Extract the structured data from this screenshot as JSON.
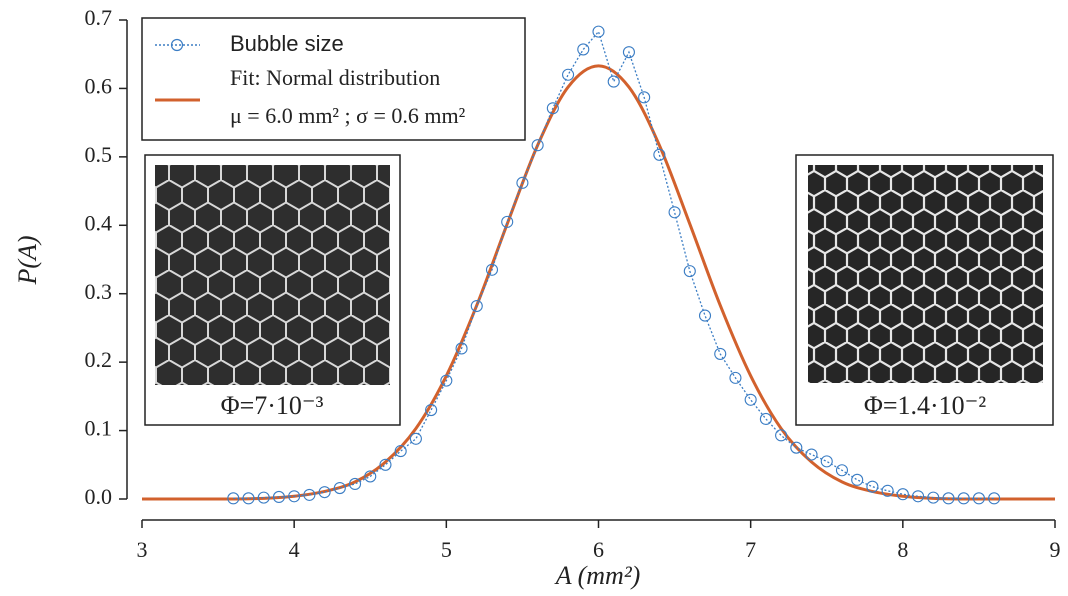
{
  "chart_data": {
    "type": "line",
    "xlabel": "A (mm²)",
    "ylabel": "P(A)",
    "xlim": [
      3,
      9
    ],
    "ylim": [
      0,
      0.7
    ],
    "xticks": [
      3,
      4,
      5,
      6,
      7,
      8,
      9
    ],
    "yticks": [
      {
        "value": 0,
        "label": "0.0"
      },
      0.1,
      0.2,
      0.3,
      0.4,
      0.5,
      0.6,
      0.7
    ],
    "legend": {
      "location": "upper left",
      "subtitle": "μ = 6.0 mm² ; σ = 0.6 mm²"
    },
    "annotations": [
      "Φ=7·10⁻³",
      "Φ=1.4·10⁻²"
    ],
    "series": [
      {
        "name": "Bubble size",
        "color": "#3b7dc4",
        "marker": "o",
        "linestyle": "dotted",
        "x": [
          3.6,
          3.7,
          3.8,
          3.9,
          4.0,
          4.1,
          4.2,
          4.3,
          4.4,
          4.5,
          4.6,
          4.7,
          4.8,
          4.9,
          5.0,
          5.1,
          5.2,
          5.3,
          5.4,
          5.5,
          5.6,
          5.7,
          5.8,
          5.9,
          6.0,
          6.1,
          6.2,
          6.3,
          6.4,
          6.5,
          6.6,
          6.7,
          6.8,
          6.9,
          7.0,
          7.1,
          7.2,
          7.3,
          7.4,
          7.5,
          7.6,
          7.7,
          7.8,
          7.9,
          8.0,
          8.1,
          8.2,
          8.3,
          8.4,
          8.5,
          8.6
        ],
        "values": [
          0.001,
          0.001,
          0.002,
          0.003,
          0.004,
          0.006,
          0.01,
          0.016,
          0.022,
          0.033,
          0.05,
          0.07,
          0.088,
          0.13,
          0.173,
          0.22,
          0.282,
          0.335,
          0.405,
          0.462,
          0.517,
          0.571,
          0.62,
          0.657,
          0.683,
          0.61,
          0.653,
          0.587,
          0.503,
          0.419,
          0.333,
          0.268,
          0.212,
          0.177,
          0.145,
          0.117,
          0.093,
          0.075,
          0.065,
          0.055,
          0.042,
          0.028,
          0.018,
          0.012,
          0.007,
          0.004,
          0.002,
          0.001,
          0.001,
          0.001,
          0.001
        ]
      },
      {
        "name": "Fit: Normal distribution",
        "color": "#d2612d",
        "marker": "none",
        "linestyle": "solid",
        "x": [
          3.0,
          3.2,
          3.4,
          3.6,
          3.8,
          4.0,
          4.2,
          4.4,
          4.6,
          4.8,
          5.0,
          5.2,
          5.4,
          5.6,
          5.8,
          6.0,
          6.2,
          6.4,
          6.6,
          6.8,
          7.0,
          7.2,
          7.4,
          7.6,
          7.8,
          8.0,
          8.2,
          8.4,
          8.6,
          8.8,
          9.0
        ],
        "values": [
          0,
          0,
          0,
          0,
          0.001,
          0.004,
          0.011,
          0.025,
          0.054,
          0.103,
          0.18,
          0.283,
          0.402,
          0.517,
          0.602,
          0.633,
          0.602,
          0.517,
          0.402,
          0.283,
          0.18,
          0.103,
          0.054,
          0.025,
          0.011,
          0.004,
          0.001,
          0,
          0,
          0,
          0
        ]
      }
    ]
  }
}
